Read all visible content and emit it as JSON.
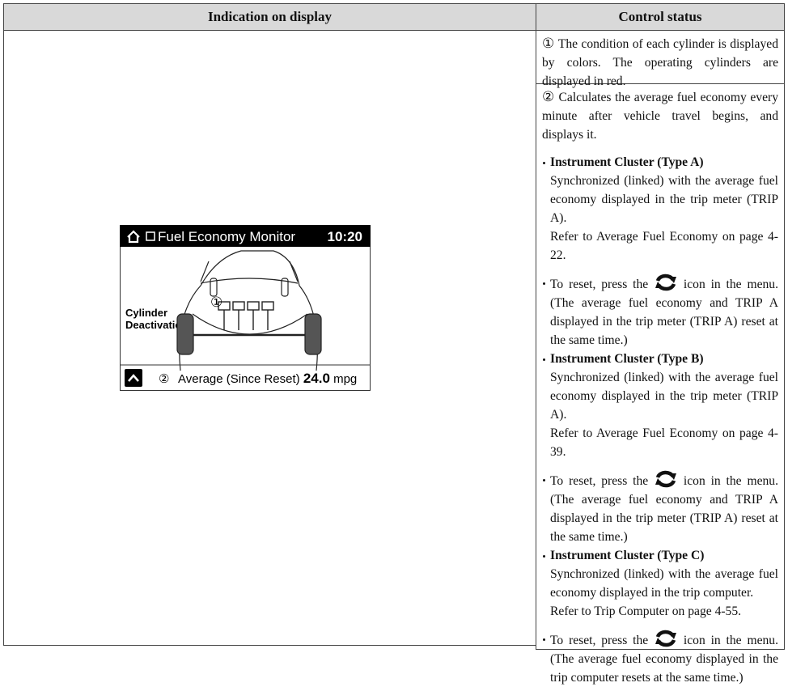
{
  "table": {
    "headers": [
      "Indication on display",
      "Control status"
    ],
    "display": {
      "title": "Fuel Economy Monitor",
      "time": "10:20",
      "label": [
        "Cylinder",
        "Deactivation"
      ],
      "marker": "①",
      "footer_marker": "②",
      "footer_label": "Average (Since Reset)",
      "footer_value": "24.0",
      "footer_unit": "mpg"
    },
    "rows": [
      {
        "marker": "①",
        "text": "The condition of each cylinder is displayed by colors. The operating cylinders are displayed in red."
      },
      {
        "marker": "②",
        "text": "Calculates the average fuel economy every minute after vehicle travel begins, and displays it.",
        "items": [
          {
            "heading": "Instrument Cluster (Type A)",
            "lines": [
              "Synchronized (linked) with the average fuel economy displayed in the trip meter (TRIP A).",
              "Refer to Average Fuel Economy on page 4-22."
            ]
          },
          {
            "before": "To reset, press the",
            "after": "icon in the menu. (The average fuel economy and TRIP A displayed in the trip meter (TRIP A) reset at the same time.)"
          },
          {
            "heading": "Instrument Cluster (Type B)",
            "lines": [
              "Synchronized (linked) with the average fuel economy displayed in the trip meter (TRIP A).",
              "Refer to Average Fuel Economy on page 4-39."
            ]
          },
          {
            "before": "To reset, press the",
            "after": "icon in the menu. (The average fuel economy and TRIP A displayed in the trip meter (TRIP A) reset at the same time.)"
          },
          {
            "heading": "Instrument Cluster (Type C)",
            "lines": [
              "Synchronized (linked) with the average fuel economy displayed in the trip computer.",
              "Refer to Trip Computer on page 4-55."
            ]
          },
          {
            "before": "To reset, press the",
            "after": "icon in the menu. (The average fuel economy displayed in the trip computer resets at the same time.)"
          }
        ]
      }
    ]
  }
}
